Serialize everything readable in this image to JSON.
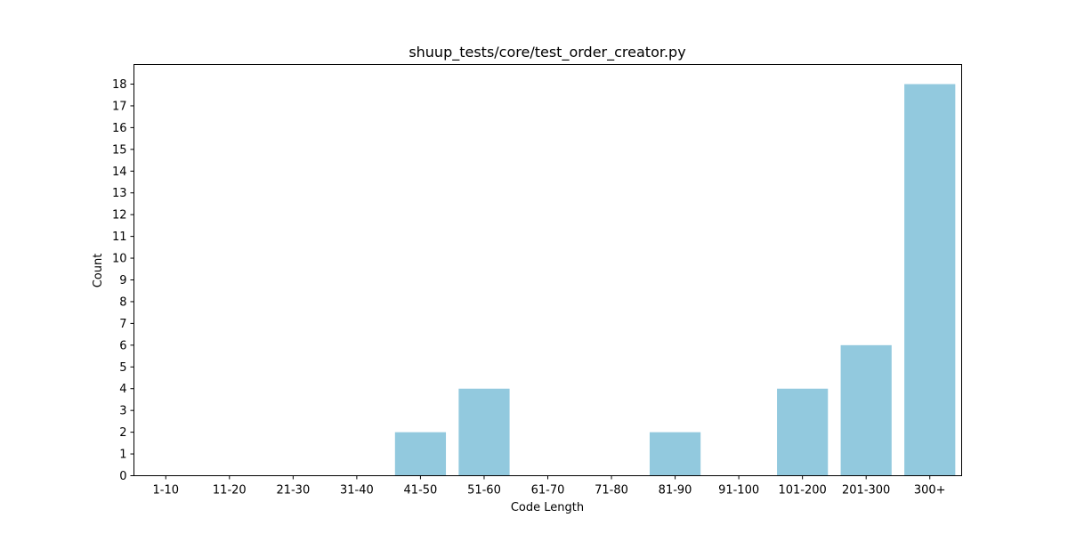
{
  "chart_data": {
    "type": "bar",
    "title": "shuup_tests/core/test_order_creator.py",
    "xlabel": "Code Length",
    "ylabel": "Count",
    "categories": [
      "1-10",
      "11-20",
      "21-30",
      "31-40",
      "41-50",
      "51-60",
      "61-70",
      "71-80",
      "81-90",
      "91-100",
      "101-200",
      "201-300",
      "300+"
    ],
    "values": [
      0,
      0,
      0,
      0,
      2,
      4,
      0,
      0,
      2,
      0,
      4,
      6,
      18
    ],
    "yticks": [
      0,
      1,
      2,
      3,
      4,
      5,
      6,
      7,
      8,
      9,
      10,
      11,
      12,
      13,
      14,
      15,
      16,
      17,
      18
    ],
    "ylim": [
      0,
      18.9
    ],
    "grid": false,
    "bar_color": "#92c9de"
  }
}
